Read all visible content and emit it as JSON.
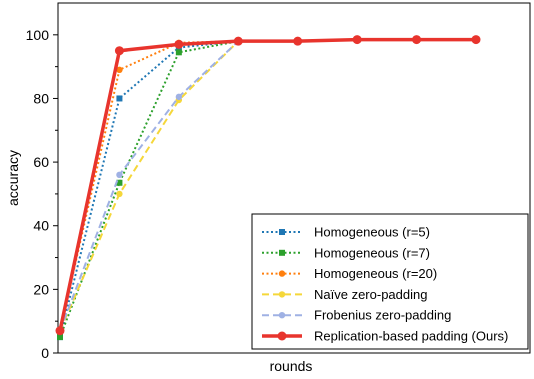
{
  "chart_data": {
    "type": "line",
    "xlabel": "rounds",
    "ylabel": "accuracy",
    "ylim": [
      0,
      110
    ],
    "yticks": [
      0,
      20,
      40,
      60,
      80,
      100
    ],
    "x": [
      0,
      1,
      2,
      3,
      4,
      5,
      6,
      7
    ],
    "xlim": [
      0,
      7
    ],
    "grid": false,
    "legend_position": "bottom-right",
    "series": [
      {
        "name": "Homogeneous (r=5)",
        "color": "#1f77b4",
        "style": "dotted",
        "marker": "square",
        "values": [
          5,
          80,
          96,
          98,
          98,
          98.5,
          98.5,
          98.5
        ]
      },
      {
        "name": "Homogeneous (r=7)",
        "color": "#2ca02c",
        "style": "dotted",
        "marker": "square",
        "values": [
          5,
          53.5,
          94.5,
          98,
          98,
          98.5,
          98.5,
          98.5
        ]
      },
      {
        "name": "Homogeneous (r=20)",
        "color": "#ff7f0e",
        "style": "dotted",
        "marker": "circle",
        "values": [
          7,
          89,
          97.5,
          98,
          98,
          98.5,
          98.5,
          98.5
        ]
      },
      {
        "name": "Naïve zero-padding",
        "color": "#f5d73a",
        "style": "dashed",
        "marker": "circle",
        "values": [
          7,
          50,
          79.5,
          98,
          98,
          98.5,
          98.5,
          98.5
        ]
      },
      {
        "name": "Frobenius zero-padding",
        "color": "#9fb1e4",
        "style": "dashed",
        "marker": "circle",
        "values": [
          7,
          56,
          80.5,
          98,
          98,
          98.5,
          98.5,
          98.5
        ]
      },
      {
        "name": "Replication-based padding (Ours)",
        "color": "#e8342d",
        "style": "solid",
        "marker": "circle",
        "values": [
          7,
          95,
          97,
          98,
          98,
          98.5,
          98.5,
          98.5
        ]
      }
    ]
  }
}
